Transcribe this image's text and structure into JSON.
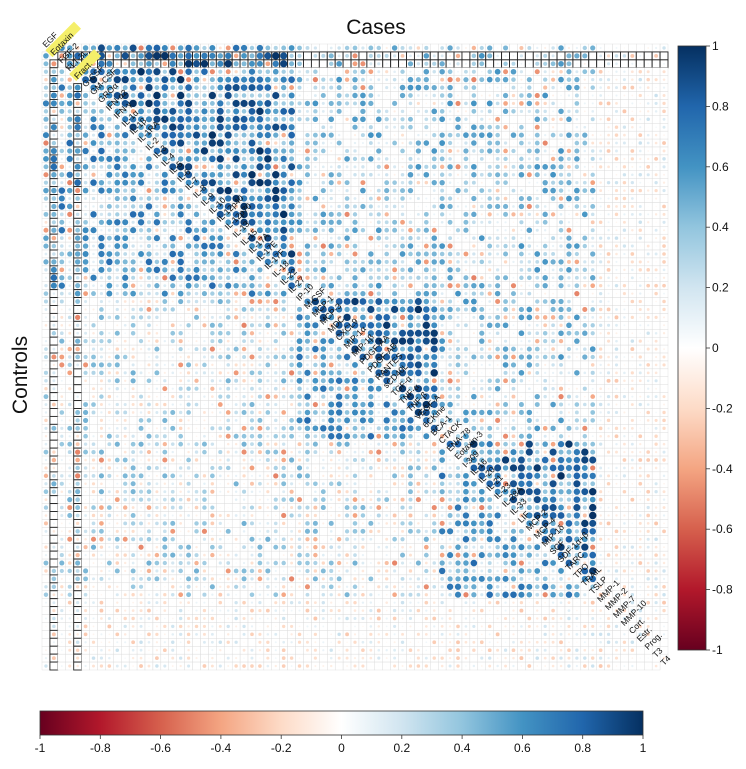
{
  "chart_data": {
    "type": "heatmap",
    "title": "Cases",
    "ylabel": "Controls",
    "description_upper": "Cases",
    "description_lower": "Controls",
    "variables": [
      "EGF",
      "Eotaxin",
      "FGF-2",
      "FLT-3L",
      "Fract.",
      "G-CSF",
      "GM-CSF",
      "GROα",
      "IFN-α2",
      "IFN-γ",
      "IL-1α",
      "IL-1β",
      "IL-1RA",
      "IL-2",
      "IL-3",
      "IL-4",
      "IL-5",
      "IL-6",
      "IL-7",
      "IL-8",
      "IL-9",
      "IL-10",
      "IL-12p40",
      "IL-12p70",
      "IL-13",
      "IL-15",
      "IL-17A",
      "IL-17E",
      "IL-17F",
      "IL-18",
      "IL-22",
      "IL-27",
      "IP-10",
      "M-CSF",
      "MCP-1",
      "MCP-3",
      "MDC",
      "CXCL9",
      "MIP-1α",
      "MIP-1β",
      "PDGF-AA",
      "PDGF-AB",
      "RANTES",
      "sCD40L",
      "TGF-α",
      "TNF-α",
      "TNF-β",
      "VEGF-A",
      "6CKine",
      "BCA-1",
      "CTACK",
      "ENA-78",
      "Eotaxin-3",
      "I-309",
      "IL-16",
      "IL-20",
      "IL-21",
      "IL-23",
      "IL-28A",
      "IL-33",
      "LIF",
      "MCP-2",
      "MCP-4",
      "MIP-1δ",
      "SCF",
      "SDF-1α+β",
      "TARC",
      "TPO",
      "TRAIL",
      "TSLP",
      "MMP-1",
      "MMP-2",
      "MMP-7",
      "MMP-10",
      "Cort.",
      "Estr.",
      "Prog.",
      "T3",
      "T4"
    ],
    "highlighted_variables": [
      "Eotaxin",
      "Fract."
    ],
    "highlight_color": "#f5ef6a",
    "value_range": [
      -1,
      1
    ],
    "colorbar_ticks_vertical": [
      "1",
      "0.8",
      "0.6",
      "0.4",
      "0.2",
      "0",
      "-0.2",
      "-0.4",
      "-0.6",
      "-0.8",
      "-1"
    ],
    "colorbar_ticks_horizontal": [
      "-1",
      "-0.8",
      "-0.6",
      "-0.4",
      "-0.2",
      "0",
      "0.2",
      "0.4",
      "0.6",
      "0.8",
      "1"
    ],
    "colorscale": [
      "#67001f",
      "#b2182b",
      "#d6604d",
      "#f4a582",
      "#fddbc7",
      "#ffffff",
      "#d1e5f0",
      "#92c5de",
      "#4393c3",
      "#2166ac",
      "#053061"
    ],
    "boxed_rows_upper": [
      "Eotaxin",
      "FGF-2"
    ],
    "boxed_columns_lower": [
      "Eotaxin",
      "Fract."
    ],
    "grid": true,
    "legend_placement": "right and bottom colorbars"
  }
}
